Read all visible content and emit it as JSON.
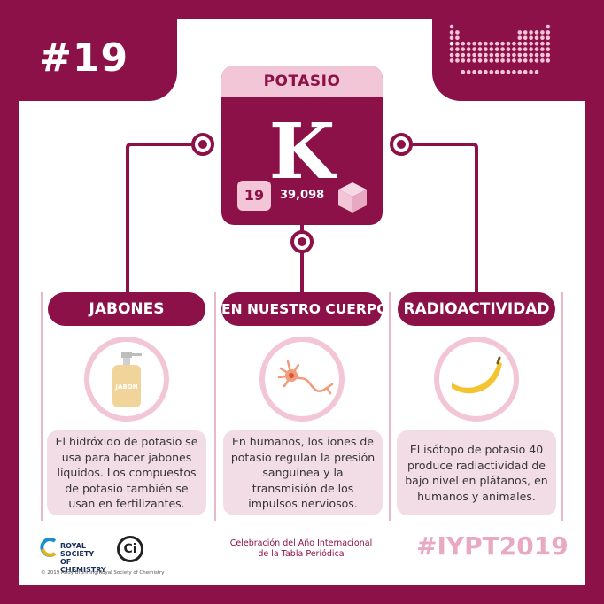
{
  "header": {
    "issue_number": "#19"
  },
  "element": {
    "name": "POTASIO",
    "symbol": "K",
    "atomic_number": "19",
    "atomic_mass": "39,098"
  },
  "categories": [
    {
      "title": "JABONES",
      "icon": "soap-bottle-icon",
      "icon_label": "JABÓN",
      "description": "El hidróxido de potasio se usa para hacer jabones líquidos. Los compuestos de potasio también se usan en fertilizantes."
    },
    {
      "title": "EN NUESTRO CUERPO",
      "icon": "neuron-icon",
      "description": "En humanos, los iones de potasio regulan la presión sanguínea y la transmisión de los impulsos nerviosos."
    },
    {
      "title": "RADIOACTIVIDAD",
      "icon": "banana-icon",
      "description": "El isótopo de potasio 40 produce radiactividad de bajo nivel en plátanos, en humanos y animales."
    }
  ],
  "footer": {
    "rsc_line1": "ROYAL SOCIETY",
    "rsc_line2": "OF CHEMISTRY",
    "ci_logo": "Ci",
    "copyright": "© 2019 Andy Brunning/Royal Society of Chemistry",
    "celebration_line1": "Celebración del Año Internacional",
    "celebration_line2": "de la Tabla Periódica",
    "hashtag": "#IYPT2019"
  },
  "colors": {
    "primary": "#8c1148",
    "light_pink": "#f2c5d7",
    "pale_pink": "#f2dce6",
    "hashtag_pink": "#e9a9c3"
  }
}
